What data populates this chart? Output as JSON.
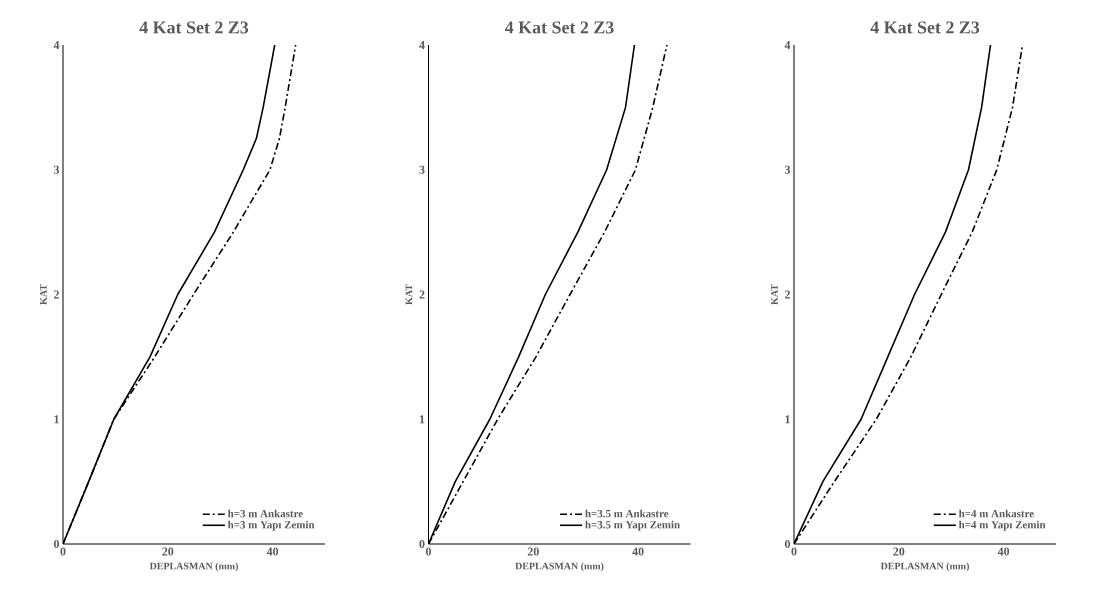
{
  "chart_data": [
    {
      "type": "line",
      "title": "4 Kat Set 2 Z3",
      "xlabel": "DEPLASMAN (mm)",
      "ylabel": "KAT",
      "xlim": [
        0,
        50
      ],
      "ylim": [
        0,
        4
      ],
      "xticks": [
        0,
        20,
        40
      ],
      "yticks": [
        0,
        1,
        2,
        3,
        4
      ],
      "legend": "bottom right",
      "series": [
        {
          "name": "h=3 m Ankastre",
          "color": "#000000",
          "line_style": "dashdot",
          "x": [
            0,
            4.9,
            9.7,
            17.5,
            24.9,
            32.5,
            39.5,
            41.3,
            42.4,
            44.4
          ],
          "values": [
            0,
            0.5,
            1,
            1.5,
            2,
            2.5,
            3,
            3.25,
            3.5,
            4
          ]
        },
        {
          "name": "h=3 m Yapı Zemin",
          "color": "#000000",
          "line_style": "solid",
          "x": [
            0,
            4.9,
            9.7,
            16.6,
            21.9,
            28.9,
            34.4,
            36.9,
            38.2,
            40.4
          ],
          "values": [
            0,
            0.5,
            1,
            1.5,
            2,
            2.5,
            3,
            3.25,
            3.5,
            4
          ]
        }
      ]
    },
    {
      "type": "line",
      "title": "4 Kat Set 2 Z3",
      "xlabel": "DEPLASMAN (mm)",
      "ylabel": "KAT",
      "xlim": [
        0,
        50
      ],
      "ylim": [
        0,
        4
      ],
      "xticks": [
        0,
        20,
        40
      ],
      "yticks": [
        0,
        1,
        2,
        3,
        4
      ],
      "legend": "bottom right",
      "series": [
        {
          "name": "h=3.5 m Ankastre",
          "color": "#000000",
          "line_style": "dashdot",
          "x": [
            0,
            6.6,
            13.2,
            20.5,
            27.0,
            33.6,
            39.5,
            42.8,
            45.5
          ],
          "values": [
            0,
            0.5,
            1,
            1.5,
            2,
            2.5,
            3,
            3.5,
            4
          ]
        },
        {
          "name": "h=3.5 m Yapı Zemin",
          "color": "#000000",
          "line_style": "solid",
          "x": [
            0,
            5.1,
            11.7,
            17.2,
            22.3,
            28.5,
            34.0,
            37.6,
            39.3
          ],
          "values": [
            0,
            0.5,
            1,
            1.5,
            2,
            2.5,
            3,
            3.5,
            4
          ]
        }
      ]
    },
    {
      "type": "line",
      "title": "4 Kat Set 2 Z3",
      "xlabel": "DEPLASMAN (mm)",
      "ylabel": "KAT",
      "xlim": [
        0,
        50
      ],
      "ylim": [
        0,
        4
      ],
      "xticks": [
        0,
        20,
        40
      ],
      "yticks": [
        0,
        1,
        2,
        3,
        4
      ],
      "legend": "bottom right",
      "series": [
        {
          "name": "h=4 m Ankastre",
          "color": "#000000",
          "line_style": "dashdot",
          "x": [
            0,
            7.7,
            15.7,
            22.3,
            28.1,
            34.0,
            38.7,
            41.7,
            43.6
          ],
          "values": [
            0,
            0.5,
            1,
            1.5,
            2,
            2.5,
            3,
            3.5,
            4
          ]
        },
        {
          "name": "h=4 m Yapı Zemin",
          "color": "#000000",
          "line_style": "solid",
          "x": [
            0,
            5.5,
            12.8,
            17.9,
            23.0,
            28.9,
            33.3,
            35.8,
            37.5
          ],
          "values": [
            0,
            0.5,
            1,
            1.5,
            2,
            2.5,
            3,
            3.5,
            4
          ]
        }
      ]
    }
  ]
}
